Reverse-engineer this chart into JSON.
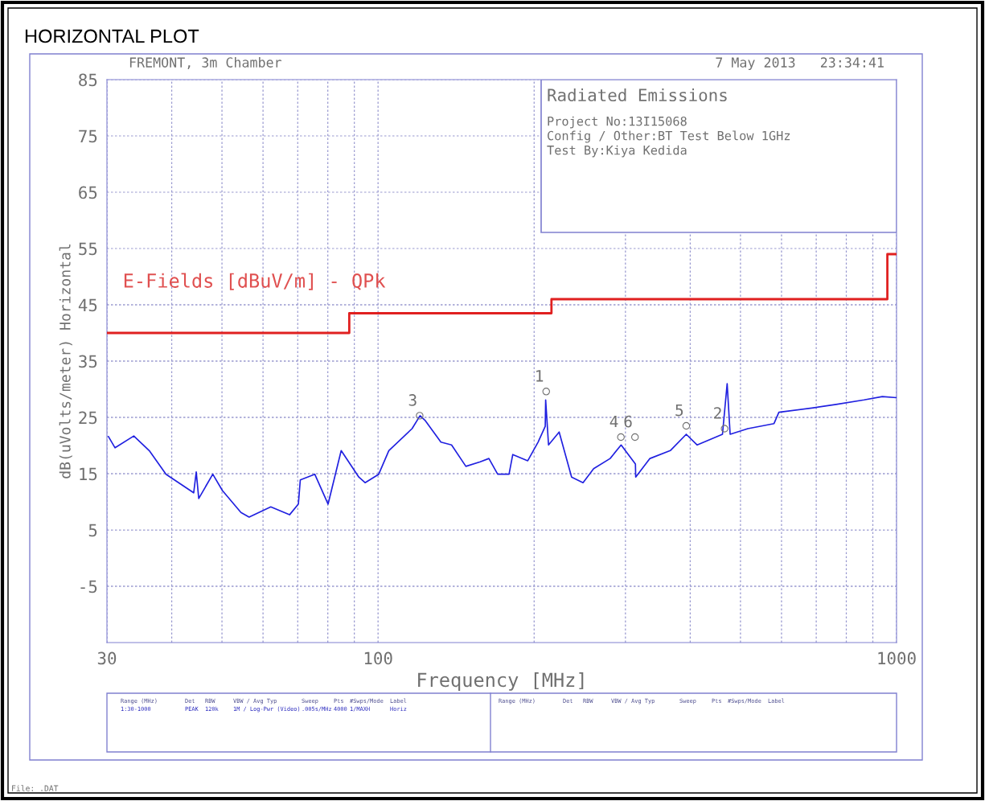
{
  "chart_data": {
    "type": "line",
    "title": "HORIZONTAL PLOT",
    "xlabel": "Frequency [MHz]",
    "ylabel": "dB(uVolts/meter) Horizontal",
    "log": "x",
    "xlim": [
      30,
      1000
    ],
    "ylim": [
      -15,
      85
    ],
    "xticks": [
      30,
      {
        "value": 40,
        "label": null
      },
      {
        "value": 50,
        "label": null
      },
      {
        "value": 60,
        "label": null
      },
      {
        "value": 70,
        "label": null
      },
      {
        "value": 80,
        "label": null
      },
      {
        "value": 90,
        "label": null
      },
      100,
      {
        "value": 200,
        "label": null
      },
      {
        "value": 300,
        "label": null
      },
      {
        "value": 400,
        "label": null
      },
      {
        "value": 500,
        "label": null
      },
      {
        "value": 600,
        "label": null
      },
      {
        "value": 700,
        "label": null
      },
      {
        "value": 800,
        "label": null
      },
      {
        "value": 900,
        "label": null
      },
      1000
    ],
    "yticks": [
      85,
      75,
      65,
      55,
      45,
      35,
      25,
      15,
      5,
      -5
    ],
    "grid": true,
    "legend": false,
    "marker": "none",
    "line_style": "solid",
    "series": [
      {
        "color": "#2020e0",
        "x": [
          30.2,
          31.1,
          33.8,
          36.2,
          39.0,
          44.1,
          44.6,
          45.1,
          48.0,
          50.1,
          54.4,
          56.4,
          62.1,
          67.5,
          70.2,
          70.8,
          75.5,
          80.1,
          84.9,
          91.8,
          94.4,
          100.3,
          104.9,
          116.3,
          120.5,
          123.4,
          132.2,
          138.6,
          147.7,
          157.4,
          163.6,
          170.1,
          178.9,
          181.9,
          194.4,
          203.5,
          210.1,
          210.5,
          213.2,
          223.5,
          236.2,
          248.5,
          260.5,
          280.3,
          294.3,
          313.6,
          314,
          334.5,
          366.1,
          393.0,
          412.6,
          461.6,
          471.3,
          477.6,
          516.6,
          580.3,
          593.0,
          691.1,
          764.6,
          865.5,
          938.8,
          1000
        ],
        "values": [
          21.6,
          19.6,
          21.7,
          19.1,
          14.9,
          11.6,
          15.3,
          10.6,
          14.9,
          12.0,
          8.1,
          7.3,
          9.1,
          7.7,
          9.6,
          13.9,
          14.9,
          9.6,
          19.1,
          14.4,
          13.4,
          14.9,
          19.1,
          23.0,
          25.3,
          24.4,
          20.6,
          20.1,
          16.3,
          17.1,
          17.7,
          14.9,
          14.9,
          18.4,
          17.3,
          20.6,
          23.4,
          28.1,
          20.1,
          22.4,
          14.4,
          13.4,
          15.9,
          17.7,
          20.1,
          16.7,
          14.4,
          17.7,
          19.1,
          22.0,
          20.1,
          22.0,
          31.0,
          22.0,
          23.0,
          23.9,
          25.9,
          26.7,
          27.3,
          28.1,
          28.7,
          28.5
        ]
      },
      {
        "type": "step",
        "color": "#e02020",
        "x": [
          30,
          88,
          216,
          960,
          1000
        ],
        "values": [
          40,
          43.5,
          46,
          54,
          54
        ]
      }
    ],
    "annotations": [
      "E-Fields [dBuV/m] - QPk",
      "FREMONT, 3m Chamber",
      "7 May 2013   23:34:41",
      "Radiated Emissions",
      "Project No:13I15068",
      "Config / Other:BT Test Below 1GHz",
      "Test By:Kiya Kedida",
      "Range (MHz)",
      "Det",
      "RBW",
      "VBW / Avg Typ",
      "Sweep",
      "Pts",
      "#Swps/Mode",
      "Label",
      "1:30-1000",
      "PEAK",
      "120k",
      "1M / Log-Pwr (Video)",
      ".005s/MHz",
      "4000",
      "1/MAXH",
      "Horiz",
      "Range (MHz)",
      "Det",
      "RBW",
      "VBW / Avg Typ",
      "Sweep",
      "Pts",
      "#Swps/Mode",
      "Label",
      "File: .DAT",
      {
        "text": "1",
        "x": 211,
        "y": 29.6
      },
      {
        "text": "3",
        "x": 120.3,
        "y": 25.3
      },
      {
        "text": "4",
        "x": 294,
        "y": 21.5
      },
      {
        "text": "6",
        "x": 313,
        "y": 21.5
      },
      {
        "text": "5",
        "x": 393,
        "y": 23.5
      },
      {
        "text": "2",
        "x": 466,
        "y": 23.0
      }
    ]
  }
}
